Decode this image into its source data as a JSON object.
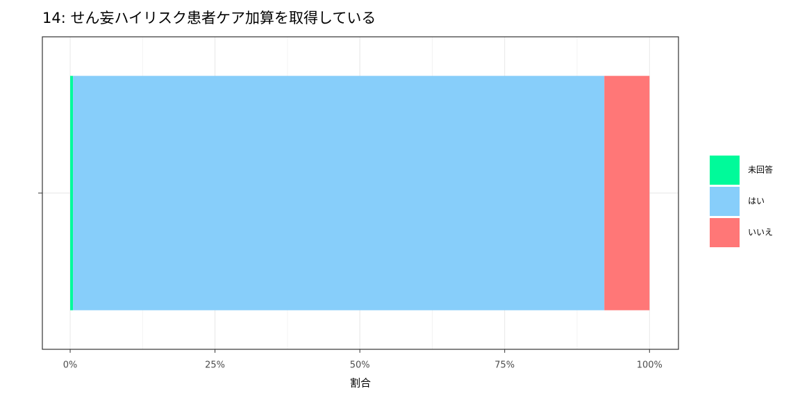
{
  "chart_data": {
    "type": "bar",
    "orientation": "horizontal",
    "stacked": true,
    "title": "14: せん妄ハイリスク患者ケア加算を取得している",
    "x_label": "割合",
    "categories": [
      null
    ],
    "series": [
      {
        "name": "未回答",
        "color": "#00FA9A",
        "values": [
          0.5
        ]
      },
      {
        "name": "はい",
        "color": "#87CEFA",
        "values": [
          91.7
        ]
      },
      {
        "name": "いいえ",
        "color": "#FF7777",
        "values": [
          7.8
        ]
      }
    ],
    "xlim": [
      -4.8,
      105
    ],
    "xticks": [
      {
        "value": 0,
        "label": "0%"
      },
      {
        "value": 25,
        "label": "25%"
      },
      {
        "value": 50,
        "label": "50%"
      },
      {
        "value": 75,
        "label": "75%"
      },
      {
        "value": 100,
        "label": "100%"
      }
    ],
    "minor_xticks": [
      12.5,
      37.5,
      62.5,
      87.5
    ],
    "grid": true,
    "legend_position": "right"
  }
}
